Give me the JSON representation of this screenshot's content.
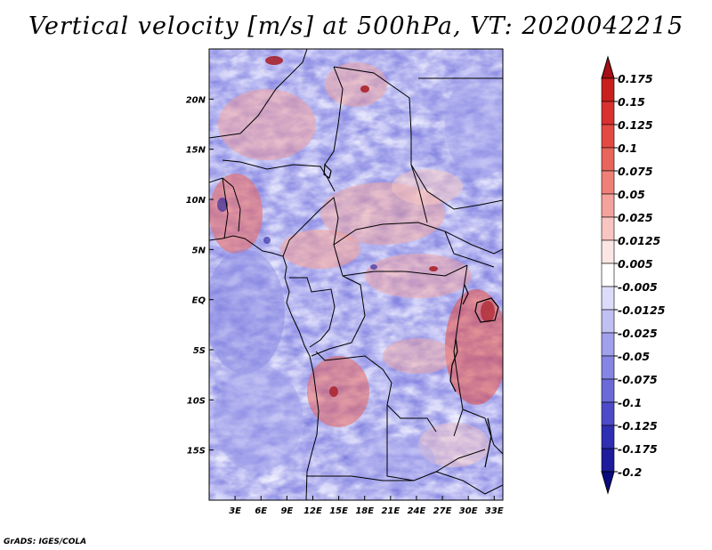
{
  "map": {
    "title": "Vertical velocity [m/s] at 500hPa, VT: 2020042215",
    "variable": "Vertical velocity",
    "units": "m/s",
    "level": "500hPa",
    "valid_time": "2020042215",
    "credit": "GrADS: IGES/COLA",
    "lat_labels": [
      "20N",
      "15N",
      "10N",
      "5N",
      "EQ",
      "5S",
      "10S",
      "15S"
    ],
    "lat_values": [
      20,
      15,
      10,
      5,
      0,
      -5,
      -10,
      -15
    ],
    "lon_labels": [
      "3E",
      "6E",
      "9E",
      "12E",
      "15E",
      "18E",
      "21E",
      "24E",
      "27E",
      "30E",
      "33E"
    ],
    "lon_values": [
      3,
      6,
      9,
      12,
      15,
      18,
      21,
      24,
      27,
      30,
      33
    ],
    "extent": {
      "lon_min": 0,
      "lon_max": 34,
      "lat_min": -20,
      "lat_max": 25
    }
  },
  "colorbar": {
    "labels": [
      "0.175",
      "0.15",
      "0.125",
      "0.1",
      "0.075",
      "0.05",
      "0.025",
      "0.0125",
      "0.005",
      "-0.005",
      "-0.0125",
      "-0.025",
      "-0.05",
      "-0.075",
      "-0.1",
      "-0.125",
      "-0.175",
      "-0.2"
    ],
    "colors": [
      "#a50f15",
      "#c8201e",
      "#d93030",
      "#e34a42",
      "#e8655c",
      "#ee8078",
      "#f3a39c",
      "#f8c5c0",
      "#fce6e3",
      "#ffffff",
      "#dcdcfa",
      "#c0c0f3",
      "#a0a0ec",
      "#8585e3",
      "#6a6ad8",
      "#4c4cc8",
      "#2f2fb3",
      "#1c1c9c",
      "#0a0a80"
    ]
  }
}
